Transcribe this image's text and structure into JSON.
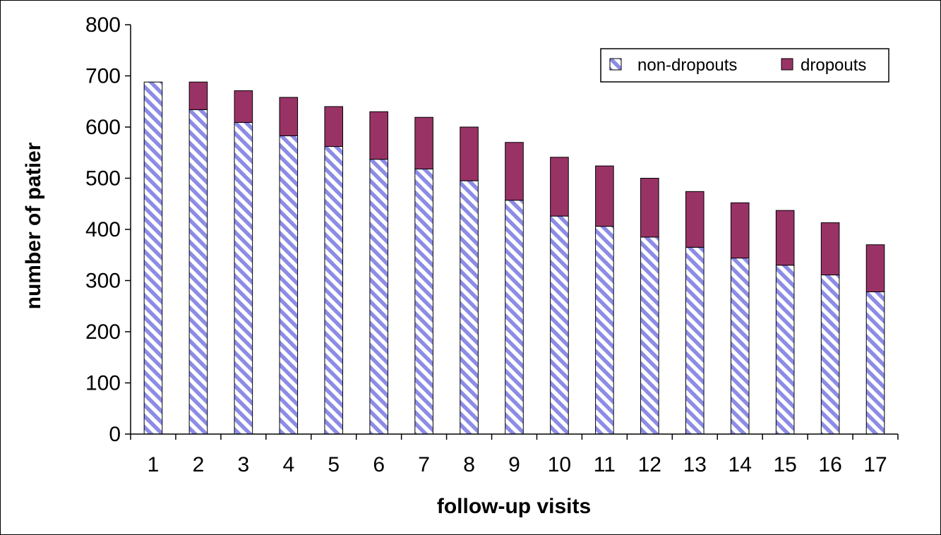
{
  "chart_data": {
    "type": "bar",
    "stacked": true,
    "title": "",
    "xlabel": "follow-up visits",
    "ylabel": "number of patier",
    "ylim": [
      0,
      800
    ],
    "yticks": [
      0,
      100,
      200,
      300,
      400,
      500,
      600,
      700,
      800
    ],
    "grid": false,
    "legend_position": "top-right",
    "categories": [
      "1",
      "2",
      "3",
      "4",
      "5",
      "6",
      "7",
      "8",
      "9",
      "10",
      "11",
      "12",
      "13",
      "14",
      "15",
      "16",
      "17"
    ],
    "series": [
      {
        "name": "non-dropouts",
        "color": "#8c8ce6",
        "pattern": "diagonal-hatch",
        "values": [
          688,
          634,
          609,
          583,
          562,
          537,
          518,
          495,
          457,
          426,
          406,
          385,
          365,
          344,
          330,
          311,
          278
        ]
      },
      {
        "name": "dropouts",
        "color": "#993366",
        "values": [
          0,
          54,
          62,
          75,
          78,
          93,
          101,
          105,
          113,
          115,
          118,
          115,
          109,
          108,
          107,
          102,
          92
        ]
      }
    ]
  }
}
